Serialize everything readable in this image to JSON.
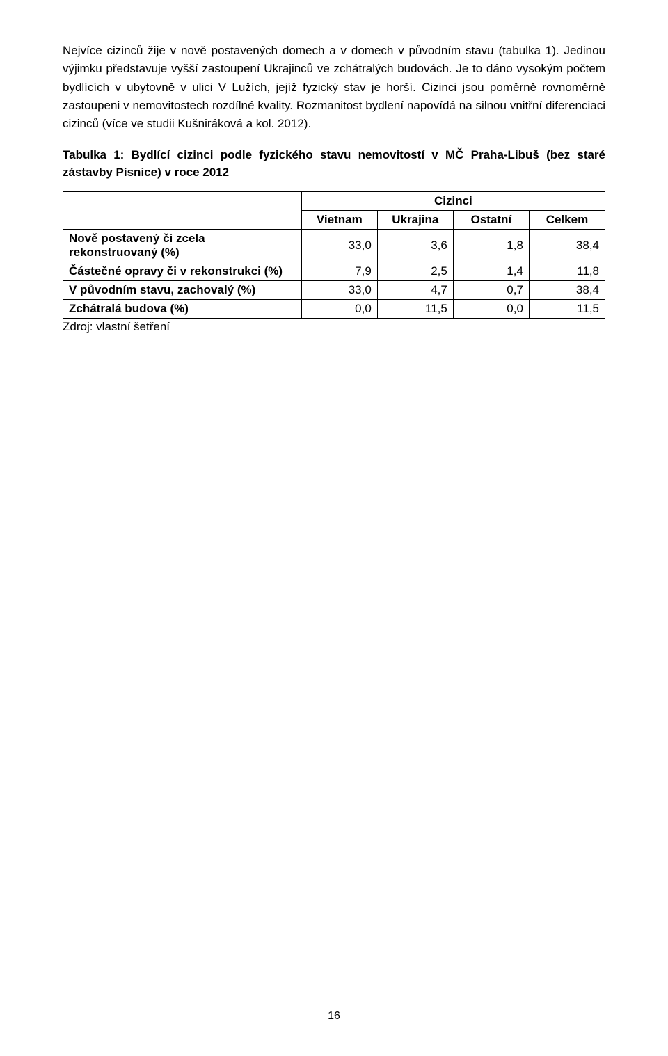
{
  "paragraph1": "Nejvíce cizinců žije v nově postavených domech a v domech v původním stavu (tabulka 1). Jedinou výjimku představuje vyšší zastoupení Ukrajinců ve zchátralých budovách. Je to dáno vysokým počtem bydlících v ubytovně v ulici V Lužích, jejíž fyzický stav je horší. Cizinci jsou poměrně rovnoměrně zastoupeni v nemovitostech rozdílné kvality. Rozmanitost bydlení napovídá na silnou vnitřní diferenciaci cizinců (více ve studii Kušniráková a kol. 2012).",
  "tableTitle": "Tabulka 1: Bydlící cizinci podle fyzického stavu nemovitostí v MČ Praha-Libuš (bez staré zástavby Písnice) v roce 2012",
  "table": {
    "groupHeader": "Cizinci",
    "columns": [
      "Vietnam",
      "Ukrajina",
      "Ostatní",
      "Celkem"
    ],
    "rows": [
      {
        "label": "Nově postavený či zcela rekonstruovaný (%)",
        "values": [
          "33,0",
          "3,6",
          "1,8",
          "38,4"
        ]
      },
      {
        "label": "Částečné opravy či v rekonstrukci (%)",
        "values": [
          "7,9",
          "2,5",
          "1,4",
          "11,8"
        ]
      },
      {
        "label": "V původním stavu, zachovalý (%)",
        "values": [
          "33,0",
          "4,7",
          "0,7",
          "38,4"
        ]
      },
      {
        "label": "Zchátralá budova (%)",
        "values": [
          "0,0",
          "11,5",
          "0,0",
          "11,5"
        ]
      }
    ],
    "colWidths": [
      "44%",
      "14%",
      "14%",
      "14%",
      "14%"
    ]
  },
  "source": "Zdroj: vlastní šetření",
  "pageNumber": "16"
}
